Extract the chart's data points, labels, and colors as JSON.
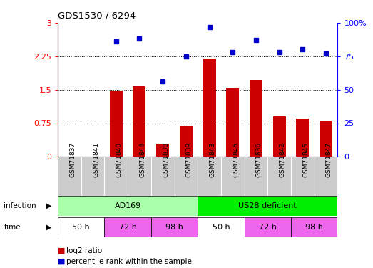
{
  "title": "GDS1530 / 6294",
  "samples": [
    "GSM71837",
    "GSM71841",
    "GSM71840",
    "GSM71844",
    "GSM71838",
    "GSM71839",
    "GSM71843",
    "GSM71846",
    "GSM71836",
    "GSM71842",
    "GSM71845",
    "GSM71847"
  ],
  "log2_ratio": [
    0,
    0,
    1.48,
    1.58,
    0.3,
    0.7,
    2.2,
    1.55,
    1.72,
    0.9,
    0.85,
    0.8
  ],
  "percentile_rank": [
    0,
    0,
    86,
    88,
    56,
    75,
    97,
    78,
    87,
    78,
    80,
    77
  ],
  "bar_color": "#cc0000",
  "dot_color": "#0000cc",
  "ylim_left": [
    0,
    3
  ],
  "yticks_left": [
    0,
    0.75,
    1.5,
    2.25,
    3
  ],
  "ylim_right": [
    0,
    100
  ],
  "yticks_right": [
    0,
    25,
    50,
    75,
    100
  ],
  "infection_labels": [
    "AD169",
    "US28 deficient"
  ],
  "infection_colors": [
    "#aaffaa",
    "#00ee00"
  ],
  "time_labels": [
    "50 h",
    "72 h",
    "98 h",
    "50 h",
    "72 h",
    "98 h"
  ],
  "time_colors": [
    "#ffffff",
    "#ee66ee",
    "#ee66ee",
    "#ffffff",
    "#ee66ee",
    "#ee66ee"
  ],
  "background_color": "#ffffff",
  "xticklabel_bg": "#cccccc",
  "legend_red_label": "log2 ratio",
  "legend_blue_label": "percentile rank within the sample"
}
